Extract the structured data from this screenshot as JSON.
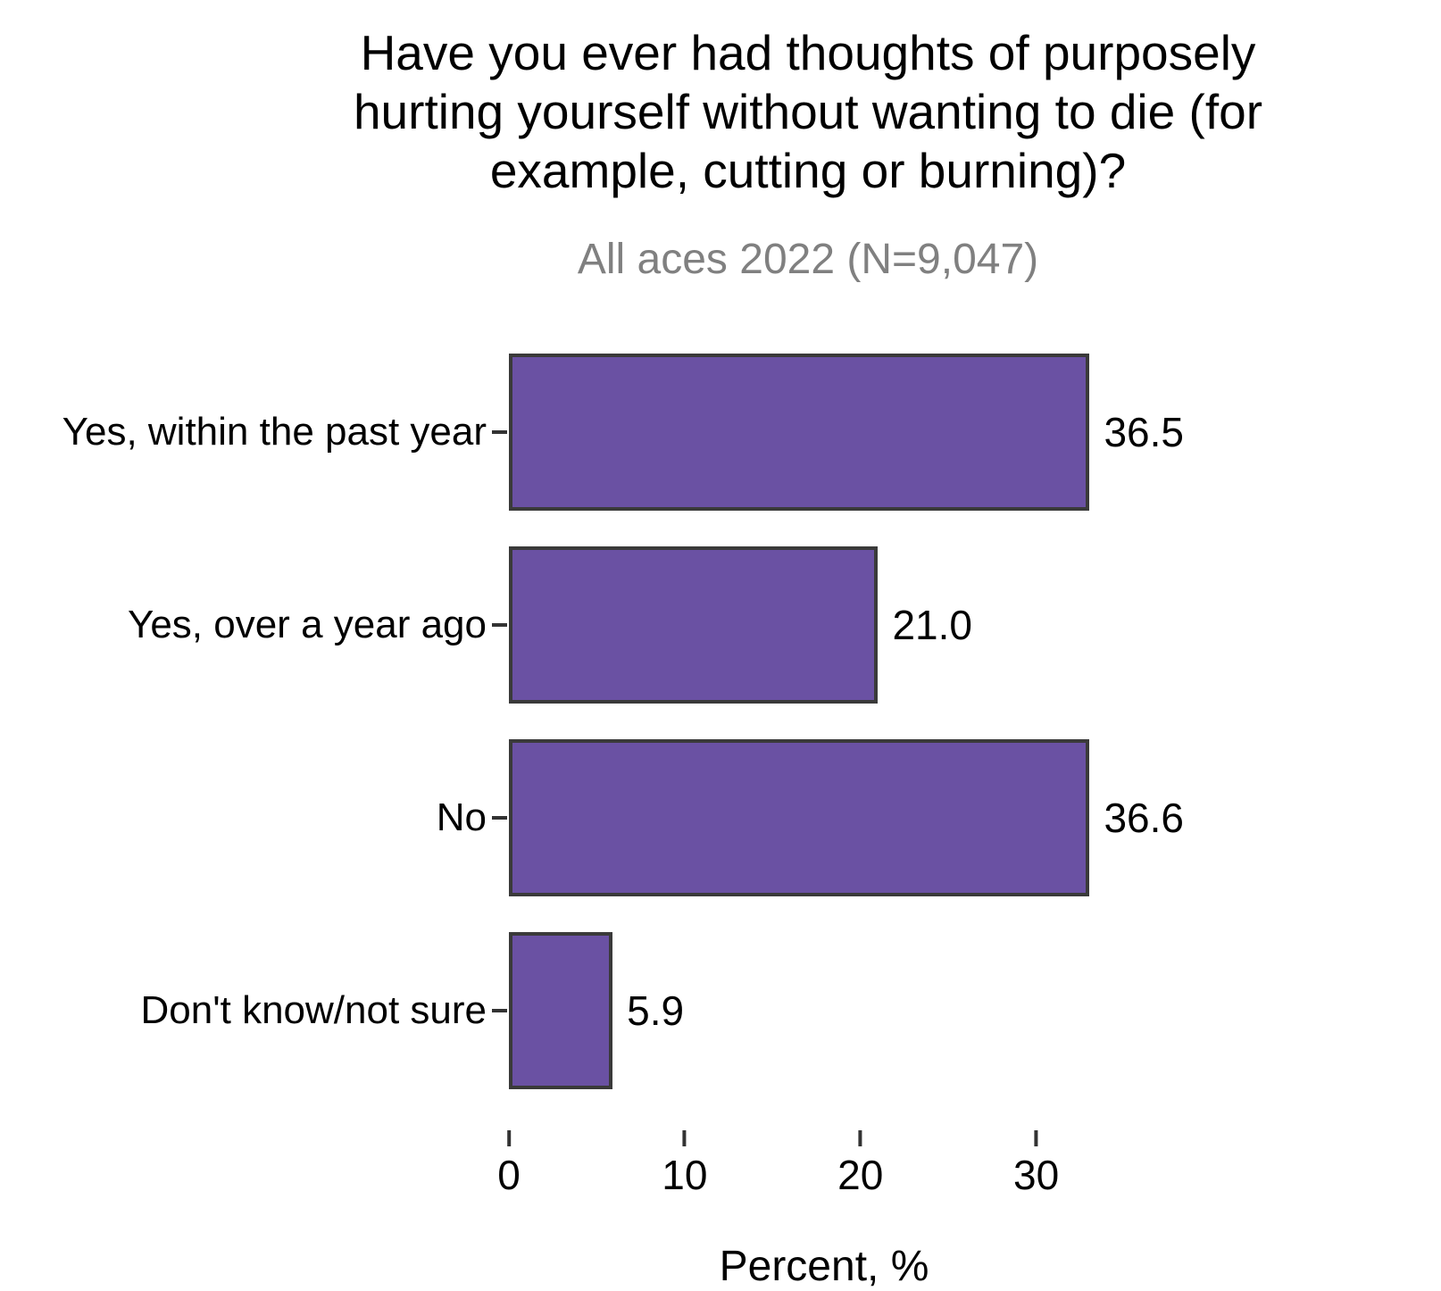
{
  "header": {
    "title_lines": [
      "Have you ever had thoughts of purposely",
      "hurting yourself without wanting to die (for",
      "example, cutting or burning)?"
    ],
    "subtitle": "All aces 2022 (N=9,047)"
  },
  "chart_data": {
    "type": "bar",
    "orientation": "horizontal",
    "title": "Have you ever had thoughts of purposely hurting yourself without wanting to die (for example, cutting or burning)?",
    "subtitle": "All aces 2022 (N=9,047)",
    "categories": [
      "Yes, within the past year",
      "Yes, over a year ago",
      "No",
      "Don't know/not sure"
    ],
    "values": [
      36.5,
      21.0,
      36.6,
      5.9
    ],
    "value_labels": [
      "36.5",
      "21.0",
      "36.6",
      "5.9"
    ],
    "xlabel": "Percent, %",
    "ylabel": "",
    "xlim": [
      0,
      38.4
    ],
    "xticks": [
      0,
      10,
      20,
      30
    ],
    "xtick_labels": [
      "0",
      "10",
      "20",
      "30"
    ],
    "grid": false,
    "legend": null,
    "colors": {
      "bar_fill": "#6A51A3",
      "bar_edge": "#3A3A3A",
      "subtitle": "#808080",
      "tick": "#333333",
      "text": "#000000",
      "background": "#FFFFFF"
    }
  }
}
